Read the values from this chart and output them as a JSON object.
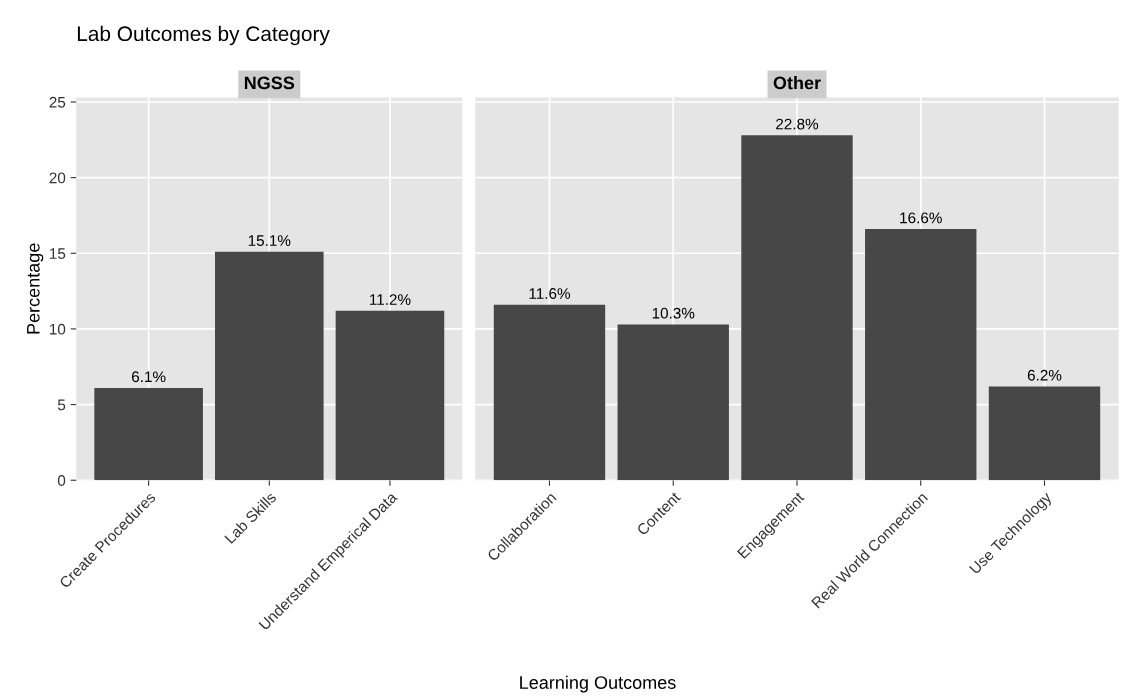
{
  "chart_data": [
    {
      "type": "bar",
      "title": "Lab Outcomes by Category",
      "subtitle": "NGSS",
      "xlabel": "Learning Outcomes",
      "ylabel": "Percentage",
      "categories": [
        "Create Procedures",
        "Lab Skills",
        "Understand Emperical Data"
      ],
      "values": [
        6.1,
        15.1,
        11.2
      ],
      "value_labels": [
        "6.1%",
        "15.1%",
        "11.2%"
      ],
      "color": "#474747",
      "ylim": [
        0,
        25.3
      ],
      "yticks": [
        0,
        5,
        10,
        15,
        20,
        25
      ],
      "grid": true
    },
    {
      "type": "bar",
      "subtitle": "Other",
      "categories": [
        "Collaboration",
        "Content",
        "Engagement",
        "Real World Connection",
        "Use Technology"
      ],
      "values": [
        11.6,
        10.3,
        22.8,
        16.6,
        6.2
      ],
      "value_labels": [
        "11.6%",
        "10.3%",
        "22.8%",
        "16.6%",
        "6.2%"
      ],
      "color": "#474747",
      "ylim": [
        0,
        25.3
      ],
      "yticks": [
        0,
        5,
        10,
        15,
        20,
        25
      ],
      "grid": true,
      "tick_labels": "x"
    }
  ]
}
